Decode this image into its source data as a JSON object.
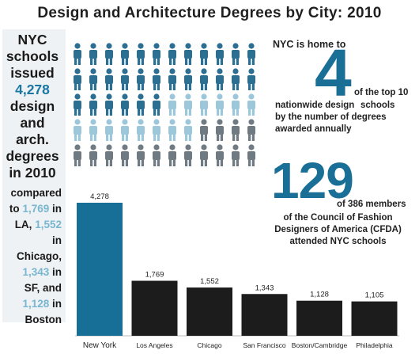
{
  "title": "Design and Architecture Degrees by City: 2010",
  "left_panel": {
    "intro_before": "NYC schools issued",
    "highlight_number": "4,278",
    "intro_after": "design and arch. degrees in 2010",
    "compared_label": "compared to",
    "comparisons": [
      {
        "value": "1,769",
        "place": "in LA,"
      },
      {
        "value": "1,552",
        "place": "in Chicago,"
      },
      {
        "value": "1,343",
        "place": "in SF, and"
      },
      {
        "value": "1,128",
        "place": "in Boston"
      }
    ]
  },
  "stat_top10": {
    "prefix": "NYC is home to",
    "big_number": "4",
    "suffix_line1": "of the top 10",
    "line2_a": "nationwide design",
    "line2_b": "schools",
    "line3": "by the number of degrees",
    "line4": "awarded annually"
  },
  "stat_cfda": {
    "big_number": "129",
    "of_text": "of 386 members",
    "description": "of the Council of Fashion Designers of America (CFDA) attended NYC schools"
  },
  "colors": {
    "nyc": "#176e97",
    "others": "#1c1c1c",
    "accent": "#1a6f97",
    "light_accent": "#79b6cf",
    "gray_person": "#6f7a82",
    "light_person": "#9cc7db",
    "dark_person": "#2b6f92"
  },
  "icons": {
    "person": "person-icon"
  },
  "chart_data": {
    "type": "bar",
    "title": "",
    "categories": [
      "New York",
      "Los Angeles",
      "Chicago",
      "San Francisco",
      "Boston/Cambridge",
      "Philadelphia"
    ],
    "values": [
      4278,
      1769,
      1552,
      1343,
      1128,
      1105
    ],
    "value_labels": [
      "4,278",
      "1,769",
      "1,552",
      "1,343",
      "1,128",
      "1,105"
    ],
    "highlight_index": 0,
    "grid": false,
    "xlabel": "",
    "ylabel": "",
    "ylim": [
      0,
      4278
    ]
  },
  "pictogram": {
    "rows": [
      {
        "color": "dark_person",
        "count": 12
      },
      {
        "color": "dark_person",
        "count": 12
      },
      {
        "color": "dark_person",
        "count": 12
      },
      {
        "color": "light_person",
        "count": 12
      },
      {
        "color": "gray_person",
        "count": 12
      }
    ]
  }
}
